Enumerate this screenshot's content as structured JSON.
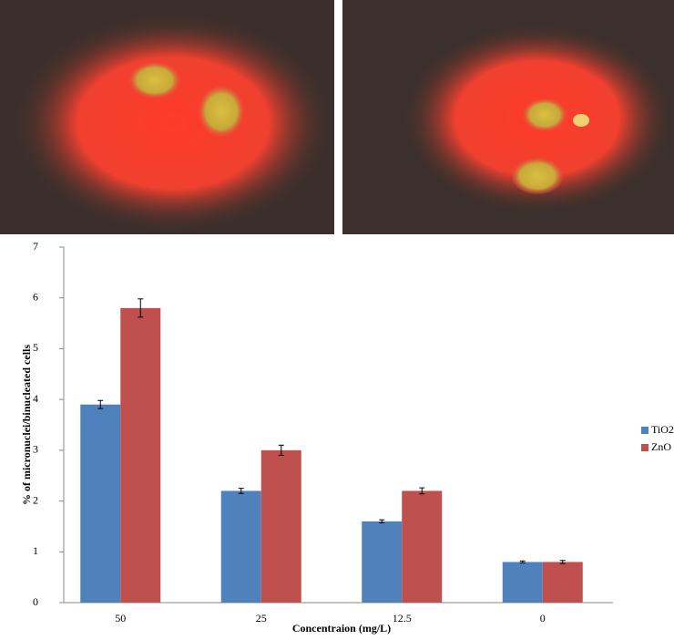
{
  "chart_data": {
    "type": "bar",
    "categories": [
      "50",
      "25",
      "12.5",
      "0"
    ],
    "series": [
      {
        "name": "TiO2",
        "color": "#4f81bd",
        "values": [
          3.9,
          2.2,
          1.6,
          0.8
        ],
        "errors": [
          0.08,
          0.05,
          0.03,
          0.02
        ]
      },
      {
        "name": "ZnO",
        "color": "#c0504d",
        "values": [
          5.8,
          3.0,
          2.2,
          0.8
        ],
        "errors": [
          0.18,
          0.1,
          0.06,
          0.03
        ]
      }
    ],
    "x_label": "Concentraion (mg/L)",
    "y_label": "% of micronuclei/binucleated  cells",
    "ylim": [
      0,
      7
    ],
    "yticks": [
      0,
      1,
      2,
      3,
      4,
      5,
      6,
      7
    ],
    "grid": false,
    "legend": "right"
  }
}
